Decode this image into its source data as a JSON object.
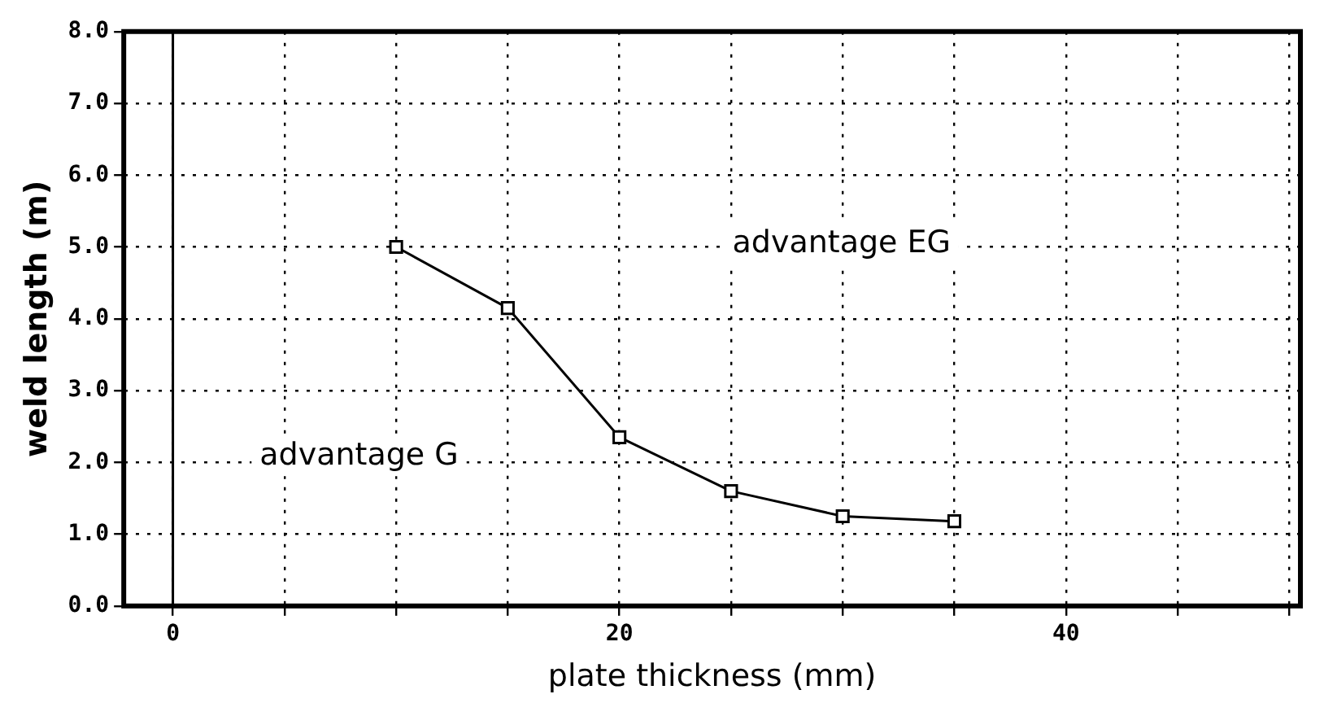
{
  "chart_data": {
    "type": "line",
    "xlabel": "plate thickness (mm)",
    "ylabel": "weld length (m)",
    "x": [
      10,
      15,
      20,
      25,
      30,
      35
    ],
    "series": [
      {
        "color": "#000000",
        "values": [
          5.0,
          4.15,
          2.35,
          1.6,
          1.25,
          1.18
        ]
      }
    ],
    "xlim": [
      -2.2,
      50.5
    ],
    "xticks": [
      {
        "value": 0,
        "label": "0"
      },
      {
        "value": 5,
        "label": null
      },
      {
        "value": 10,
        "label": null
      },
      {
        "value": 15,
        "label": null
      },
      {
        "value": 20,
        "label": "20"
      },
      {
        "value": 25,
        "label": null
      },
      {
        "value": 30,
        "label": null
      },
      {
        "value": 35,
        "label": null
      },
      {
        "value": 40,
        "label": "40"
      },
      {
        "value": 45,
        "label": null
      },
      {
        "value": 50,
        "label": null
      }
    ],
    "ylim": [
      0,
      8
    ],
    "yticks": [
      {
        "value": 0,
        "label": "0.0"
      },
      {
        "value": 1,
        "label": "1.0"
      },
      {
        "value": 2,
        "label": "2.0"
      },
      {
        "value": 3,
        "label": "3.0"
      },
      {
        "value": 4,
        "label": "4.0"
      },
      {
        "value": 5,
        "label": "5.0"
      },
      {
        "value": 6,
        "label": "6.0"
      },
      {
        "value": 7,
        "label": "7.0"
      },
      {
        "value": 8,
        "label": "8.0"
      }
    ],
    "ref_lines": [
      {
        "axis": "x",
        "value": 0,
        "color": "#000000"
      }
    ],
    "annotations": [
      "advantage EG",
      "advantage G"
    ],
    "grid": true,
    "marker": "square",
    "line_style": "solid",
    "legend": false
  }
}
